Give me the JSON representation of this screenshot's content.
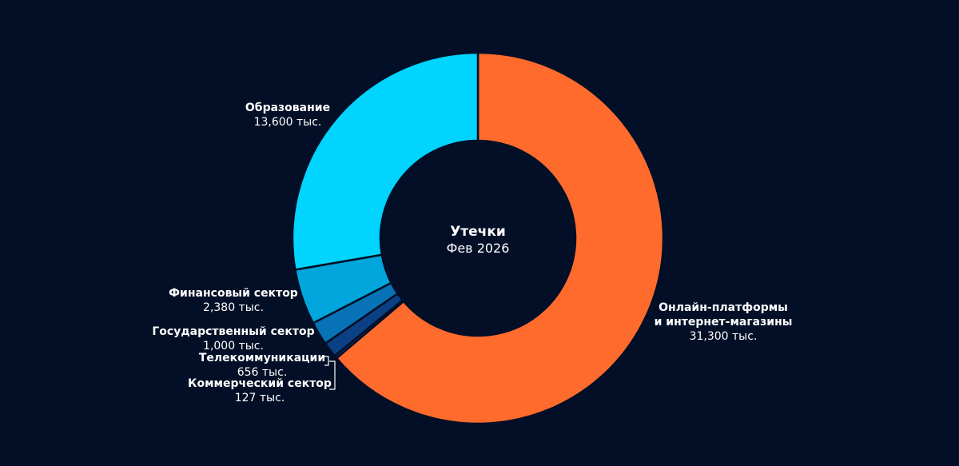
{
  "chart_data": {
    "type": "pie",
    "donut": true,
    "center_title": "Утечки",
    "center_subtitle": "Фев 2026",
    "slices": [
      {
        "id": "online",
        "label": [
          "Онлайн-платформы",
          "и интернет-магазины"
        ],
        "value": 31300,
        "value_label": "31,300 тыс.",
        "color": "#ff6b2c"
      },
      {
        "id": "commercial",
        "label": [
          "Коммерческий сектор"
        ],
        "value": 127,
        "value_label": "127 тыс.",
        "color": "#0d3270"
      },
      {
        "id": "telecom",
        "label": [
          "Телекоммуникации"
        ],
        "value": 656,
        "value_label": "656 тыс.",
        "color": "#0b4184"
      },
      {
        "id": "government",
        "label": [
          "Государственный сектор"
        ],
        "value": 1000,
        "value_label": "1,000 тыс.",
        "color": "#0872b6"
      },
      {
        "id": "finance",
        "label": [
          "Финансовый сектор"
        ],
        "value": 2380,
        "value_label": "2,380 тыс.",
        "color": "#00a6db"
      },
      {
        "id": "education",
        "label": [
          "Образование"
        ],
        "value": 13600,
        "value_label": "13,600 тыс.",
        "color": "#00d4ff"
      }
    ]
  }
}
